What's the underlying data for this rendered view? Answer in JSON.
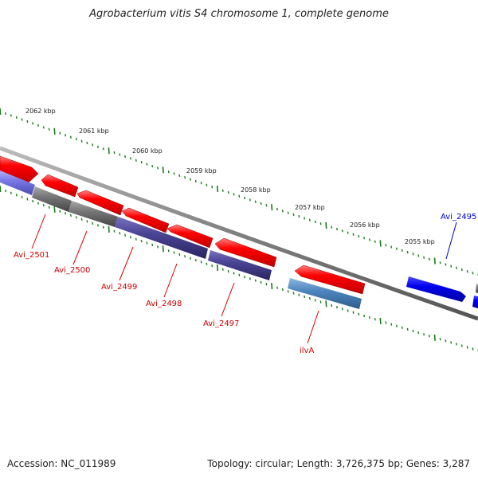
{
  "title": "Agrobacterium vitis S4 chromosome 1, complete genome",
  "accession": "Accession: NC_011989",
  "stats": "Topology: circular; Length: 3,726,375 bp; Genes: 3,287",
  "colors": {
    "backbone": "#888888",
    "tick": "#1a7a1a",
    "forward_cds": "#ff0000",
    "reverse_blue": "#0000ee",
    "label_red": "#cc0000",
    "label_blue": "#0000cc"
  },
  "scale_labels": [
    "2062 kbp",
    "2061 kbp",
    "2060 kbp",
    "2059 kbp",
    "2058 kbp",
    "2057 kbp",
    "2056 kbp",
    "2055 kbp"
  ],
  "gene_labels": [
    "Avi_2501",
    "Avi_2500",
    "Avi_2499",
    "Avi_2498",
    "Avi_2497",
    "ilvA",
    "Avi_2495"
  ]
}
